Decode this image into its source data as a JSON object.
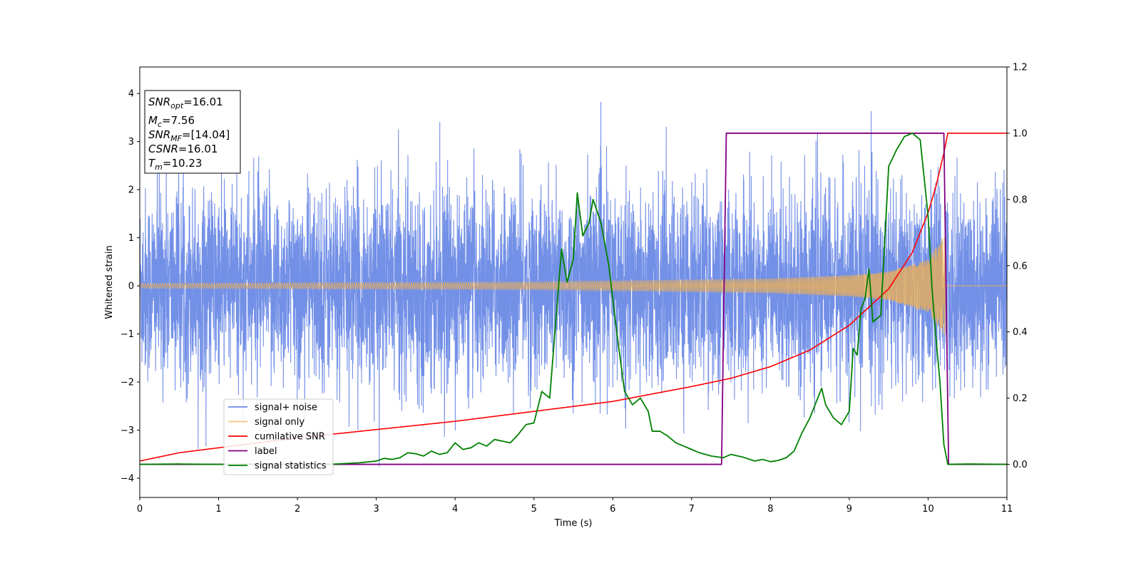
{
  "chart_data": {
    "type": "line",
    "xlabel": "Time (s)",
    "ylabel": "Whitened strain",
    "xlim": [
      0,
      11
    ],
    "ylim_left": [
      -4.4,
      4.55
    ],
    "ylim_right": [
      -0.1,
      1.2
    ],
    "x_ticks": [
      "0",
      "1",
      "2",
      "3",
      "4",
      "5",
      "6",
      "7",
      "8",
      "9",
      "10",
      "11"
    ],
    "y_left_ticks": [
      "4",
      "3",
      "2",
      "1",
      "0",
      "−1",
      "−2",
      "−3",
      "−4"
    ],
    "y_right_ticks": [
      "1.2",
      "1.0",
      "0.8",
      "0.6",
      "0.4",
      "0.2",
      "0.0"
    ],
    "annotation": [
      {
        "name": "SNR",
        "sub": "opt",
        "value": "=16.01"
      },
      {
        "name": "M",
        "sub": "c",
        "value": "=7.56"
      },
      {
        "name": "SNR",
        "sub": "MF",
        "value": "=[14.04]"
      },
      {
        "name": "CSNR",
        "sub": "",
        "value": "=16.01"
      },
      {
        "name": "T",
        "sub": "m",
        "value": "=10.23"
      }
    ],
    "legend": {
      "position": "lower-left",
      "entries": [
        "signal+ noise",
        "signal only",
        "cumilative SNR",
        "label",
        "signal statistics"
      ]
    },
    "colors": {
      "signal_noise": "#6b8ae6",
      "signal_only": "#f0b050",
      "cumulative_snr": "#ff0000",
      "label": "#800080",
      "signal_statistics": "#008000"
    },
    "series": {
      "signal_noise": {
        "axis": "left",
        "noise_sigma": 1.0,
        "t_end": 11
      },
      "signal_only": {
        "axis": "left",
        "amp_envelope": [
          [
            0,
            0.05
          ],
          [
            5,
            0.08
          ],
          [
            8,
            0.15
          ],
          [
            9,
            0.22
          ],
          [
            9.5,
            0.3
          ],
          [
            10,
            0.55
          ],
          [
            10.2,
            1.05
          ]
        ],
        "merger_time": 10.23
      },
      "cumulative_snr": {
        "axis": "right",
        "points": [
          [
            0,
            0.01
          ],
          [
            0.5,
            0.035
          ],
          [
            1,
            0.05
          ],
          [
            2,
            0.08
          ],
          [
            3,
            0.105
          ],
          [
            4,
            0.13
          ],
          [
            5,
            0.16
          ],
          [
            6,
            0.19
          ],
          [
            7,
            0.235
          ],
          [
            7.5,
            0.26
          ],
          [
            8,
            0.295
          ],
          [
            8.5,
            0.345
          ],
          [
            9,
            0.42
          ],
          [
            9.5,
            0.53
          ],
          [
            9.8,
            0.64
          ],
          [
            10,
            0.76
          ],
          [
            10.1,
            0.84
          ],
          [
            10.2,
            0.94
          ],
          [
            10.25,
            1.0
          ],
          [
            11,
            1.0
          ]
        ]
      },
      "label": {
        "axis": "right",
        "points": [
          [
            0,
            0.0
          ],
          [
            7.38,
            0.0
          ],
          [
            7.44,
            1.0
          ],
          [
            10.2,
            1.0
          ],
          [
            10.26,
            0.0
          ],
          [
            11,
            0.0
          ]
        ]
      },
      "signal_statistics": {
        "axis": "right",
        "points": [
          [
            0,
            0.0
          ],
          [
            0.5,
            0.001
          ],
          [
            1,
            0.0
          ],
          [
            1.5,
            0.001
          ],
          [
            2,
            0.0
          ],
          [
            2.5,
            0.001
          ],
          [
            2.8,
            0.005
          ],
          [
            3.0,
            0.01
          ],
          [
            3.1,
            0.018
          ],
          [
            3.2,
            0.015
          ],
          [
            3.3,
            0.02
          ],
          [
            3.4,
            0.035
          ],
          [
            3.5,
            0.032
          ],
          [
            3.6,
            0.025
          ],
          [
            3.7,
            0.04
          ],
          [
            3.8,
            0.03
          ],
          [
            3.9,
            0.035
          ],
          [
            4.0,
            0.065
          ],
          [
            4.1,
            0.045
          ],
          [
            4.2,
            0.05
          ],
          [
            4.3,
            0.065
          ],
          [
            4.4,
            0.055
          ],
          [
            4.5,
            0.075
          ],
          [
            4.6,
            0.07
          ],
          [
            4.7,
            0.065
          ],
          [
            4.8,
            0.09
          ],
          [
            4.9,
            0.12
          ],
          [
            5.0,
            0.125
          ],
          [
            5.1,
            0.22
          ],
          [
            5.2,
            0.2
          ],
          [
            5.3,
            0.5
          ],
          [
            5.35,
            0.65
          ],
          [
            5.42,
            0.55
          ],
          [
            5.5,
            0.62
          ],
          [
            5.55,
            0.82
          ],
          [
            5.62,
            0.69
          ],
          [
            5.7,
            0.73
          ],
          [
            5.75,
            0.8
          ],
          [
            5.85,
            0.73
          ],
          [
            5.95,
            0.6
          ],
          [
            6.05,
            0.4
          ],
          [
            6.15,
            0.22
          ],
          [
            6.25,
            0.18
          ],
          [
            6.35,
            0.2
          ],
          [
            6.45,
            0.16
          ],
          [
            6.5,
            0.1
          ],
          [
            6.6,
            0.1
          ],
          [
            6.7,
            0.085
          ],
          [
            6.8,
            0.065
          ],
          [
            6.9,
            0.055
          ],
          [
            7.0,
            0.045
          ],
          [
            7.1,
            0.035
          ],
          [
            7.25,
            0.025
          ],
          [
            7.4,
            0.02
          ],
          [
            7.5,
            0.03
          ],
          [
            7.65,
            0.022
          ],
          [
            7.8,
            0.01
          ],
          [
            7.9,
            0.015
          ],
          [
            8.0,
            0.008
          ],
          [
            8.1,
            0.012
          ],
          [
            8.2,
            0.02
          ],
          [
            8.3,
            0.04
          ],
          [
            8.4,
            0.095
          ],
          [
            8.5,
            0.14
          ],
          [
            8.6,
            0.2
          ],
          [
            8.65,
            0.23
          ],
          [
            8.7,
            0.18
          ],
          [
            8.8,
            0.14
          ],
          [
            8.9,
            0.12
          ],
          [
            9.0,
            0.16
          ],
          [
            9.05,
            0.35
          ],
          [
            9.1,
            0.33
          ],
          [
            9.15,
            0.47
          ],
          [
            9.2,
            0.5
          ],
          [
            9.25,
            0.59
          ],
          [
            9.3,
            0.43
          ],
          [
            9.4,
            0.45
          ],
          [
            9.5,
            0.9
          ],
          [
            9.6,
            0.95
          ],
          [
            9.7,
            0.99
          ],
          [
            9.8,
            1.0
          ],
          [
            9.9,
            0.98
          ],
          [
            10.0,
            0.75
          ],
          [
            10.05,
            0.53
          ],
          [
            10.1,
            0.38
          ],
          [
            10.15,
            0.25
          ],
          [
            10.2,
            0.06
          ],
          [
            10.25,
            0.0
          ],
          [
            10.5,
            0.001
          ],
          [
            11,
            0.0
          ]
        ]
      }
    }
  }
}
